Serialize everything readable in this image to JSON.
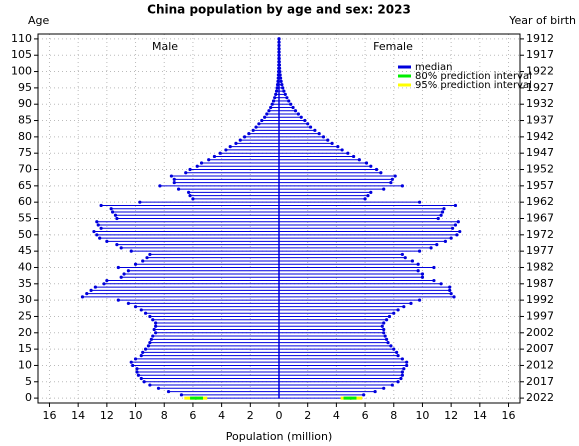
{
  "chart_data": {
    "type": "pyramid",
    "title": "China population by age and sex: 2023",
    "ylabel": "Age",
    "y2label": "Year of birth",
    "xlabel": "Population (million)",
    "left_label": "Male",
    "right_label": "Female",
    "xlim": [
      -16.8,
      16.8
    ],
    "xticks": [
      {
        "value": -16,
        "label": "16"
      },
      {
        "value": -14,
        "label": "14"
      },
      {
        "value": -12,
        "label": "12"
      },
      {
        "value": -10,
        "label": "10"
      },
      {
        "value": -8,
        "label": "8"
      },
      {
        "value": -6,
        "label": "6"
      },
      {
        "value": -4,
        "label": "4"
      },
      {
        "value": -2,
        "label": "2"
      },
      0,
      2,
      4,
      6,
      8,
      10,
      12,
      14,
      16
    ],
    "ylim": [
      -1.5,
      111.5
    ],
    "yticks": [
      0,
      5,
      10,
      15,
      20,
      25,
      30,
      35,
      40,
      45,
      50,
      55,
      60,
      65,
      70,
      75,
      80,
      85,
      90,
      95,
      100,
      105,
      110
    ],
    "y2lim": [
      2023.5,
      1910.5
    ],
    "y2ticks": [
      2022,
      2017,
      2012,
      2007,
      2002,
      1997,
      1992,
      1987,
      1982,
      1977,
      1972,
      1967,
      1962,
      1957,
      1952,
      1947,
      1942,
      1937,
      1932,
      1927,
      1922,
      1917,
      1912
    ],
    "grid": true,
    "y": [
      0,
      1,
      2,
      3,
      4,
      5,
      6,
      7,
      8,
      9,
      10,
      11,
      12,
      13,
      14,
      15,
      16,
      17,
      18,
      19,
      20,
      21,
      22,
      23,
      24,
      25,
      26,
      27,
      28,
      29,
      30,
      31,
      32,
      33,
      34,
      35,
      36,
      37,
      38,
      39,
      40,
      41,
      42,
      43,
      44,
      45,
      46,
      47,
      48,
      49,
      50,
      51,
      52,
      53,
      54,
      55,
      56,
      57,
      58,
      59,
      60,
      61,
      62,
      63,
      64,
      65,
      66,
      67,
      68,
      69,
      70,
      71,
      72,
      73,
      74,
      75,
      76,
      77,
      78,
      79,
      80,
      81,
      82,
      83,
      84,
      85,
      86,
      87,
      88,
      89,
      90,
      91,
      92,
      93,
      94,
      95,
      96,
      97,
      98,
      99,
      100,
      101,
      102,
      103,
      104,
      105,
      106,
      107,
      108,
      109,
      110
    ],
    "series": [
      {
        "name": "median",
        "color": "#0000dd",
        "male": [
          5.8,
          6.8,
          7.7,
          8.4,
          9.0,
          9.4,
          9.6,
          9.8,
          9.9,
          9.9,
          10.2,
          10.3,
          10.0,
          9.6,
          9.5,
          9.3,
          9.1,
          9.0,
          8.9,
          8.8,
          8.6,
          8.7,
          8.6,
          8.6,
          8.8,
          9.0,
          9.3,
          9.6,
          10.0,
          10.5,
          11.2,
          13.7,
          13.4,
          13.1,
          12.8,
          12.2,
          12.0,
          11.0,
          10.8,
          10.5,
          11.2,
          10.0,
          9.5,
          9.2,
          9.0,
          10.3,
          11.0,
          11.3,
          12.0,
          12.5,
          12.7,
          12.9,
          12.4,
          12.6,
          12.7,
          11.3,
          11.4,
          11.6,
          11.7,
          12.4,
          9.7,
          6.0,
          6.2,
          6.3,
          7.0,
          8.3,
          7.3,
          7.3,
          7.5,
          6.5,
          6.2,
          5.7,
          5.4,
          4.9,
          4.5,
          4.1,
          3.7,
          3.4,
          3.0,
          2.7,
          2.4,
          2.1,
          1.8,
          1.6,
          1.4,
          1.2,
          1.0,
          0.85,
          0.7,
          0.58,
          0.47,
          0.38,
          0.3,
          0.23,
          0.17,
          0.13,
          0.1,
          0.07,
          0.05,
          0.04,
          0.03,
          0.02,
          0.015,
          0.01,
          0.008,
          0.006,
          0.004,
          0.003,
          0.002,
          0.001,
          0.001
        ],
        "female": [
          5.0,
          5.9,
          6.7,
          7.3,
          7.9,
          8.3,
          8.5,
          8.6,
          8.6,
          8.7,
          8.9,
          8.9,
          8.6,
          8.3,
          8.2,
          8.0,
          7.8,
          7.6,
          7.5,
          7.4,
          7.3,
          7.3,
          7.2,
          7.3,
          7.5,
          7.7,
          8.0,
          8.3,
          8.7,
          9.2,
          9.8,
          12.2,
          12.0,
          11.9,
          11.9,
          11.3,
          10.8,
          10.0,
          10.0,
          9.7,
          10.8,
          9.7,
          9.3,
          8.8,
          8.6,
          9.8,
          10.6,
          11.0,
          11.6,
          12.0,
          12.4,
          12.6,
          12.1,
          12.3,
          12.5,
          11.1,
          11.3,
          11.4,
          11.5,
          12.3,
          9.8,
          6.0,
          6.2,
          6.4,
          7.3,
          8.6,
          7.8,
          7.9,
          8.1,
          7.1,
          6.8,
          6.4,
          6.1,
          5.6,
          5.2,
          4.8,
          4.4,
          4.1,
          3.7,
          3.4,
          3.1,
          2.8,
          2.5,
          2.2,
          2.0,
          1.8,
          1.55,
          1.35,
          1.15,
          0.98,
          0.82,
          0.68,
          0.55,
          0.44,
          0.34,
          0.26,
          0.2,
          0.15,
          0.11,
          0.08,
          0.06,
          0.04,
          0.03,
          0.02,
          0.015,
          0.01,
          0.007,
          0.005,
          0.003,
          0.002,
          0.001
        ]
      }
    ],
    "intervals": [
      {
        "name": "80% prediction interval",
        "color": "#00ee00",
        "y": [
          0
        ],
        "male": [
          [
            5.3,
            6.2
          ]
        ],
        "female": [
          [
            4.5,
            5.4
          ]
        ]
      },
      {
        "name": "95% prediction interval",
        "color": "#ffff00",
        "y": [
          0
        ],
        "male": [
          [
            5.0,
            6.6
          ]
        ],
        "female": [
          [
            4.3,
            5.8
          ]
        ]
      }
    ]
  }
}
